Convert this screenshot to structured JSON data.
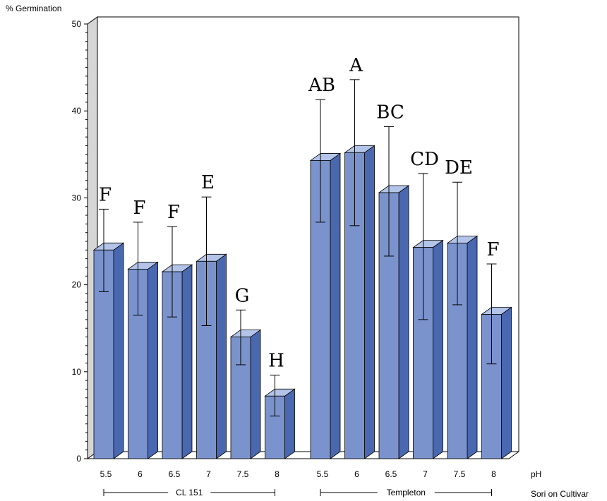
{
  "chart_data": {
    "type": "bar",
    "title": "",
    "ylabel": "% Germination",
    "xlabel": "pH",
    "group_axis_label": "Sori on Cultivar",
    "ylim": [
      0,
      50
    ],
    "yticks": [
      0,
      10,
      20,
      30,
      40,
      50
    ],
    "grid": false,
    "colors": {
      "bar_front": "#7b93cd",
      "bar_side": "#4a68b0",
      "bar_top": "#b3c4e8",
      "wall": "#d6d6d6",
      "plot_bg": "#ffffff"
    },
    "groups": [
      {
        "name": "CL 151",
        "categories": [
          "5.5",
          "6",
          "6.5",
          "7",
          "7.5",
          "8"
        ],
        "values": [
          24,
          21.8,
          21.5,
          22.7,
          14,
          7.2
        ],
        "error_low": [
          19.2,
          16.5,
          16.3,
          15.3,
          10.8,
          4.9
        ],
        "error_high": [
          28.7,
          27.2,
          26.7,
          30.1,
          17.1,
          9.6
        ],
        "letters": [
          "F",
          "F",
          "F",
          "E",
          "G",
          "H"
        ]
      },
      {
        "name": "Templeton",
        "categories": [
          "5.5",
          "6",
          "6.5",
          "7",
          "7.5",
          "8"
        ],
        "values": [
          34.3,
          35.2,
          30.6,
          24.3,
          24.8,
          16.6
        ],
        "error_low": [
          27.2,
          26.8,
          23.3,
          16,
          17.7,
          10.9
        ],
        "error_high": [
          41.3,
          43.6,
          38.2,
          32.8,
          31.8,
          22.4
        ],
        "letters": [
          "AB",
          "A",
          "BC",
          "CD",
          "DE",
          "F"
        ]
      }
    ]
  }
}
